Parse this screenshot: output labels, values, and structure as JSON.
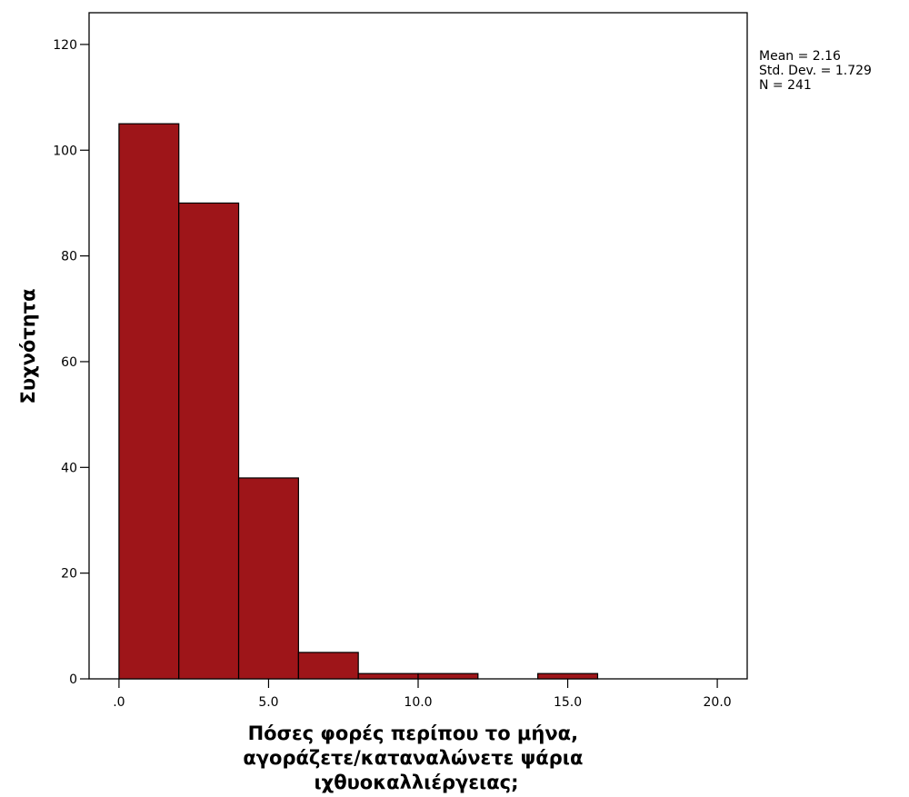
{
  "chart_data": {
    "type": "bar",
    "subtype": "histogram",
    "bins": [
      {
        "start": 0,
        "end": 2,
        "count": 105
      },
      {
        "start": 2,
        "end": 4,
        "count": 90
      },
      {
        "start": 4,
        "end": 6,
        "count": 38
      },
      {
        "start": 6,
        "end": 8,
        "count": 5
      },
      {
        "start": 8,
        "end": 10,
        "count": 1
      },
      {
        "start": 10,
        "end": 12,
        "count": 1
      },
      {
        "start": 12,
        "end": 14,
        "count": 0
      },
      {
        "start": 14,
        "end": 16,
        "count": 1
      },
      {
        "start": 16,
        "end": 18,
        "count": 0
      },
      {
        "start": 18,
        "end": 20,
        "count": 0
      }
    ],
    "xlim": [
      -1,
      21
    ],
    "ylim": [
      0,
      126
    ],
    "x_ticks": [
      0,
      5,
      10,
      15,
      20
    ],
    "x_tick_labels": [
      ".0",
      "5.0",
      "10.0",
      "15.0",
      "20.0"
    ],
    "y_ticks": [
      0,
      20,
      40,
      60,
      80,
      100,
      120
    ],
    "y_tick_labels": [
      "0",
      "20",
      "40",
      "60",
      "80",
      "100",
      "120"
    ],
    "xlabel_lines": [
      "Πόσες φορές περίπου το μήνα,",
      "αγοράζετε/καταναλώνετε ψάρια",
      "ιχθυοκαλλιέργειας;"
    ],
    "ylabel": "Συχνότητα",
    "stats": [
      "Mean = 2.16",
      "Std. Dev. = 1.729",
      "N = 241"
    ],
    "grid": false,
    "bar_color": "#9e1519",
    "legend_position": "top-right"
  }
}
